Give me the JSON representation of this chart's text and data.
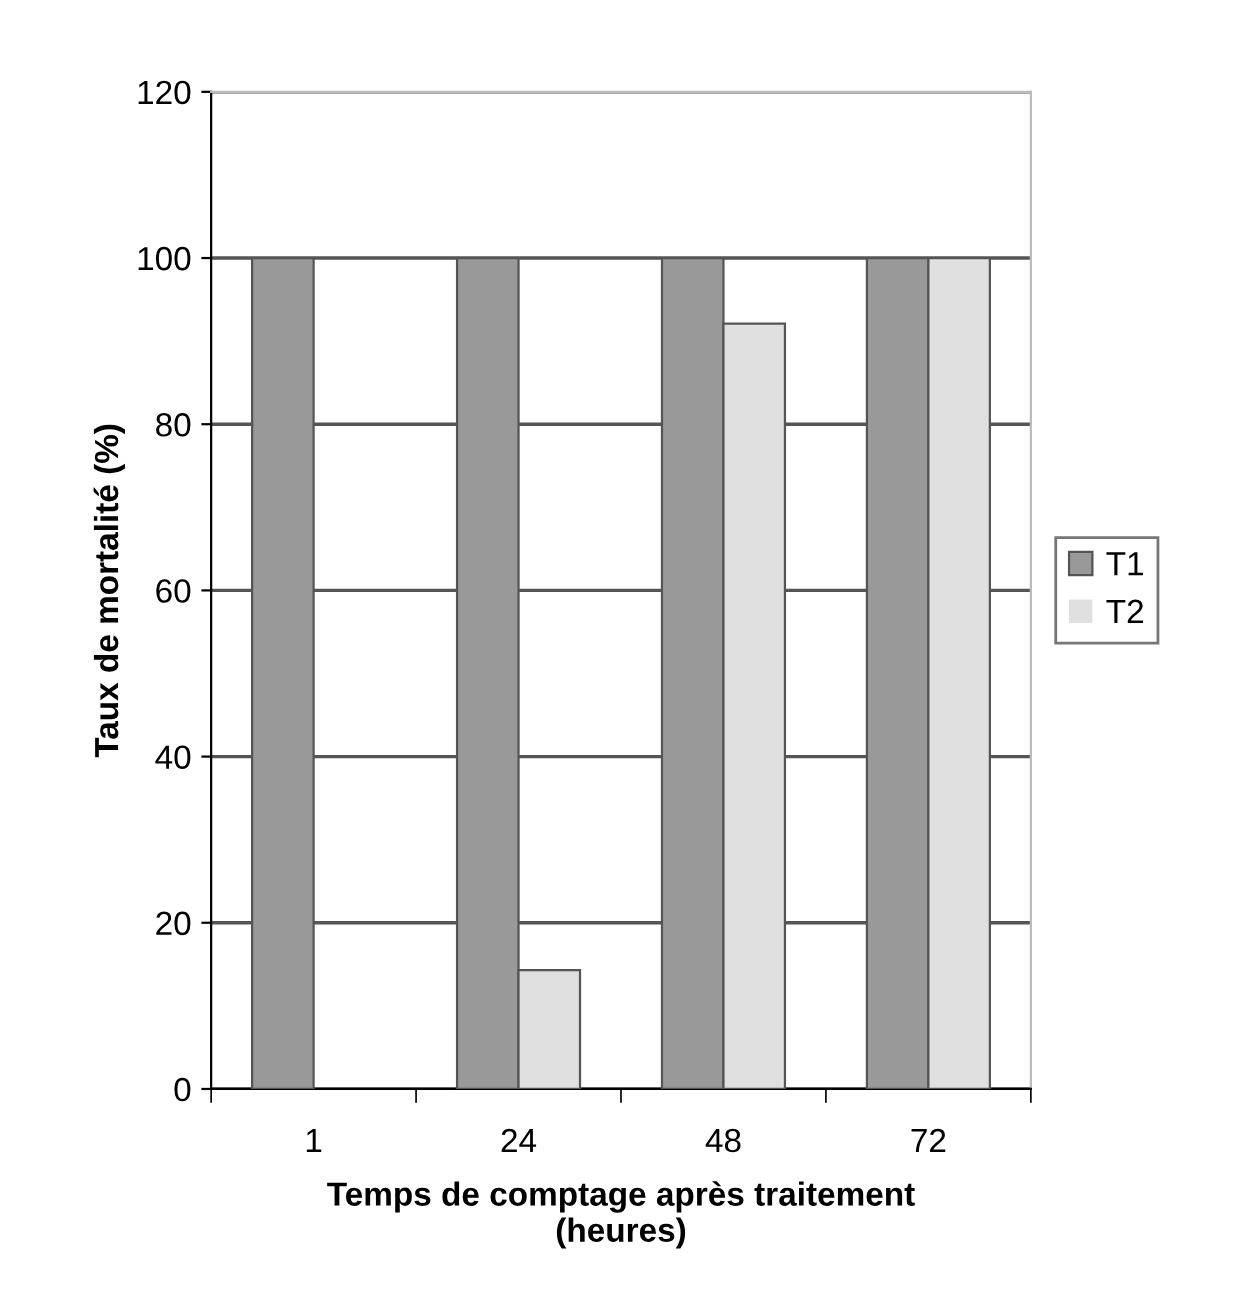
{
  "chart_data": {
    "type": "bar",
    "xlabel": "Temps de comptage après traitement\n(heures)",
    "ylabel": "Taux de mortalité (%)",
    "categories": [
      "1",
      "24",
      "48",
      "72"
    ],
    "series": [
      {
        "name": "T1",
        "color": "#999999",
        "values": [
          100,
          100,
          100,
          100
        ]
      },
      {
        "name": "T2",
        "color": "#e0e0e0",
        "values": [
          0,
          14.3,
          92.1,
          100
        ]
      }
    ],
    "ylim": [
      0,
      120
    ],
    "yticks": [
      0,
      20,
      40,
      60,
      80,
      100,
      120
    ],
    "grid": "y",
    "legend": "right"
  }
}
